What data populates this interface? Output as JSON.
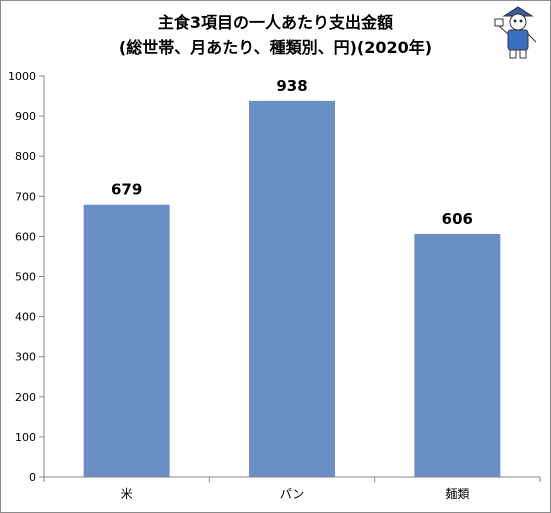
{
  "chart_data": {
    "type": "bar",
    "title": "主食3項目の一人あたり支出金額",
    "subtitle": "(総世帯、月あたり、種類別、円)(2020年)",
    "categories": [
      "米",
      "パン",
      "麺類"
    ],
    "values": [
      679,
      938,
      606
    ],
    "data_labels": [
      "679",
      "938",
      "606"
    ],
    "xlabel": "",
    "ylabel": "",
    "ylim": [
      0,
      1000
    ],
    "yticks": [
      0,
      100,
      200,
      300,
      400,
      500,
      600,
      700,
      800,
      900,
      1000
    ],
    "grid": false,
    "legend": "none",
    "bar_color": "#6a8fc7"
  }
}
